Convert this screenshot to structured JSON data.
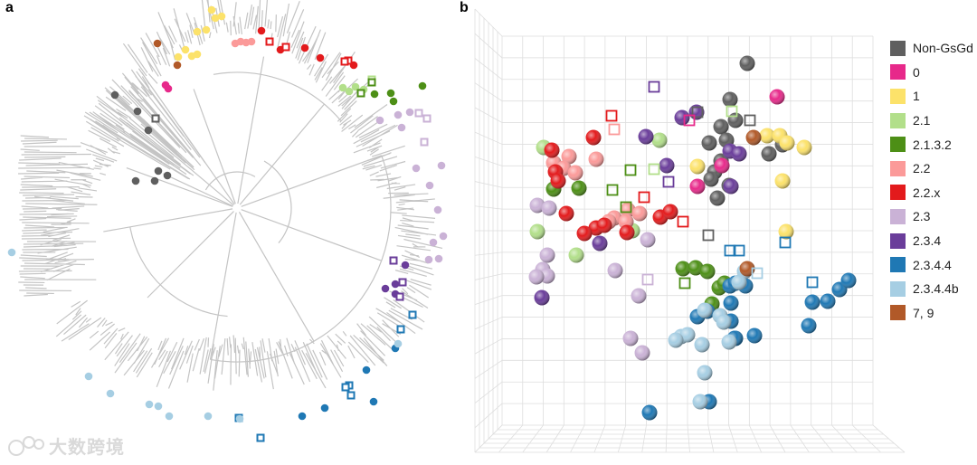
{
  "panels": {
    "a_label": "a",
    "b_label": "b"
  },
  "legend": [
    {
      "label": "Non-GsGd",
      "color": "#5f5f5f"
    },
    {
      "label": "0",
      "color": "#e7298a"
    },
    {
      "label": "1",
      "color": "#fce26a"
    },
    {
      "label": "2.1",
      "color": "#b2df8a"
    },
    {
      "label": "2.1.3.2",
      "color": "#4d8f16"
    },
    {
      "label": "2.2",
      "color": "#fb9a99"
    },
    {
      "label": "2.2.x",
      "color": "#e31a1c"
    },
    {
      "label": "2.3",
      "color": "#cab2d6"
    },
    {
      "label": "2.3.4",
      "color": "#6a3d9a"
    },
    {
      "label": "2.3.4.4",
      "color": "#1f78b4"
    },
    {
      "label": "2.3.4.4b",
      "color": "#a6cee3"
    },
    {
      "label": "7, 9",
      "color": "#b15928"
    }
  ],
  "watermark": {
    "text": "大数跨境"
  }
}
